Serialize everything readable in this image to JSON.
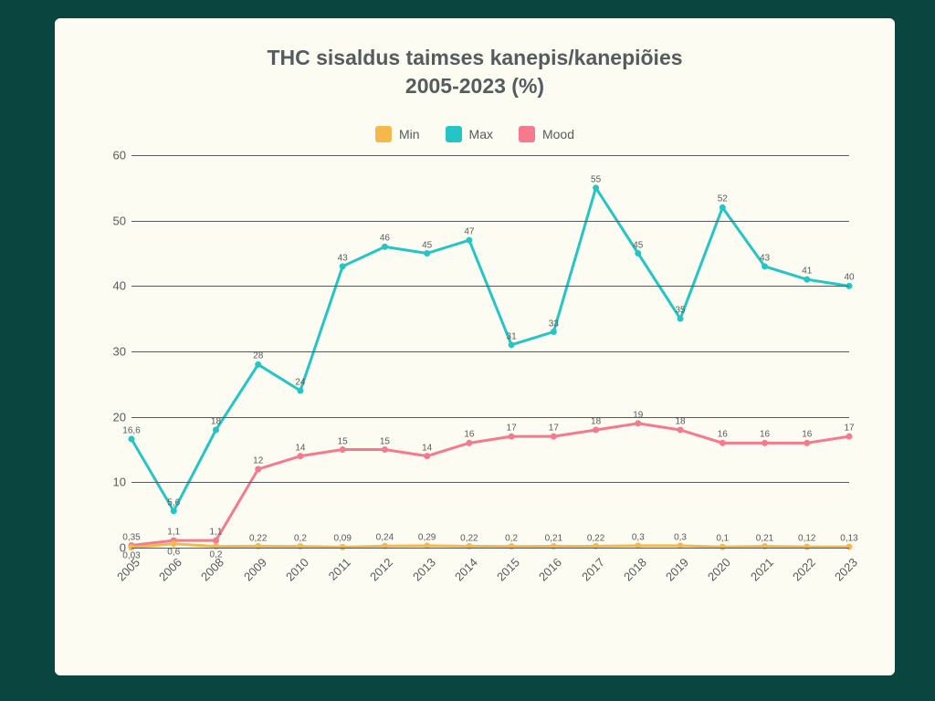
{
  "title_line1": "THC sisaldus taimses kanepis/kanepiõies",
  "title_line2": "2005-2023 (%)",
  "background_color": "#0a453f",
  "canvas_color": "#fdfcf2",
  "text_color": "#555b5e",
  "legend": [
    {
      "label": "Min",
      "color": "#f4b94a"
    },
    {
      "label": "Max",
      "color": "#25c4c5"
    },
    {
      "label": "Mood",
      "color": "#f57a8e"
    }
  ],
  "chart": {
    "type": "line",
    "ylim": [
      0,
      60
    ],
    "ytick_step": 10,
    "grid_color": "#555b5e",
    "line_width": 3,
    "marker_radius": 3.5,
    "categories": [
      "2005",
      "2006",
      "2008",
      "2009",
      "2010",
      "2011",
      "2012",
      "2013",
      "2014",
      "2015",
      "2016",
      "2017",
      "2018",
      "2019",
      "2020",
      "2021",
      "2022",
      "2023"
    ],
    "series": [
      {
        "name": "Max",
        "color": "#25c4c5",
        "values": [
          16.6,
          5.6,
          18,
          28,
          24,
          43,
          46,
          45,
          47,
          31,
          33,
          55,
          45,
          35,
          52,
          43,
          41,
          40
        ],
        "labels": [
          "16,6",
          "5,6",
          "18",
          "28",
          "24",
          "43",
          "46",
          "45",
          "47",
          "31",
          "33",
          "55",
          "45",
          "35",
          "52",
          "43",
          "41",
          "40"
        ]
      },
      {
        "name": "Mood",
        "color": "#f57a8e",
        "values": [
          0.35,
          1.1,
          1.1,
          12,
          14,
          15,
          15,
          14,
          16,
          17,
          17,
          18,
          19,
          18,
          16,
          16,
          16,
          17
        ],
        "labels": [
          "0,35",
          "1,1",
          "1,1",
          "12",
          "14",
          "15",
          "15",
          "14",
          "16",
          "17",
          "17",
          "18",
          "19",
          "18",
          "16",
          "16",
          "16",
          "17"
        ]
      },
      {
        "name": "Min",
        "color": "#f4b94a",
        "values": [
          0.03,
          0.6,
          0.2,
          0.22,
          0.2,
          0.09,
          0.24,
          0.29,
          0.22,
          0.2,
          0.21,
          0.22,
          0.3,
          0.3,
          0.1,
          0.21,
          0.12,
          0.13
        ],
        "labels": [
          "0,03",
          "0,6",
          "0,2",
          "0,22",
          "0,2",
          "0,09",
          "0,24",
          "0,29",
          "0,22",
          "0,2",
          "0,21",
          "0,22",
          "0,3",
          "0,3",
          "0,1",
          "0,21",
          "0,12",
          "0,13"
        ]
      }
    ],
    "min_label_positions": [
      "below",
      "below",
      "below",
      "above",
      "above",
      "above",
      "above",
      "above",
      "above",
      "above",
      "above",
      "above",
      "above",
      "above",
      "above",
      "above",
      "above",
      "above"
    ]
  }
}
